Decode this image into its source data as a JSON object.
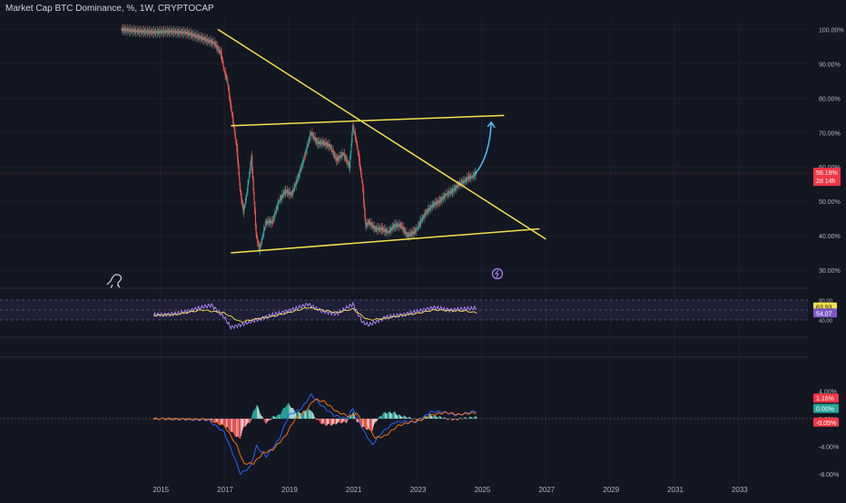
{
  "header": {
    "title": "Market Cap BTC Dominance, %, 1W, CRYPTOCAP"
  },
  "colors": {
    "background": "#131722",
    "up": "#26a69a",
    "down": "#ef5350",
    "trendline": "#f5e04b",
    "projection": "#4fc3f7",
    "rsi_line": "#b388ff",
    "rsi_ma": "#f5e04b",
    "macd": "#2962ff",
    "signal": "#ff6d00",
    "current_price_badge": "#f23645"
  },
  "main_price": {
    "current_value_label": "58.19%",
    "countdown_label": "2d 14h"
  },
  "rsi_pane": {
    "rsi_value": "63.93",
    "ma_value": "54.07"
  },
  "macd_pane": {
    "value_labels": [
      "1.16%",
      "0.00%",
      "-0.05%"
    ]
  },
  "chart_data": [
    {
      "type": "line",
      "title": "Market Cap BTC Dominance, %, 1W, CRYPTOCAP",
      "y_ticks": [
        "100.00%",
        "90.00%",
        "80.00%",
        "70.00%",
        "60.00%",
        "50.00%",
        "40.00%",
        "30.00%"
      ],
      "x_ticks": [
        "2015",
        "2017",
        "2019",
        "2021",
        "2023",
        "2025",
        "2027",
        "2029",
        "2031",
        "2033"
      ],
      "ylim": [
        30,
        100
      ],
      "x_year_range": [
        2014.2,
        2034.3
      ],
      "series": [
        {
          "points": [
            [
              2013.8,
              100
            ],
            [
              2014.3,
              99.5
            ],
            [
              2014.8,
              99.2
            ],
            [
              2015.3,
              99.4
            ],
            [
              2015.8,
              99.1
            ],
            [
              2016.3,
              97.5
            ],
            [
              2016.7,
              96
            ],
            [
              2016.9,
              93
            ],
            [
              2017.0,
              88
            ],
            [
              2017.1,
              85
            ],
            [
              2017.2,
              78
            ],
            [
              2017.3,
              72
            ],
            [
              2017.4,
              65
            ],
            [
              2017.5,
              53
            ],
            [
              2017.6,
              47
            ],
            [
              2017.7,
              52
            ],
            [
              2017.8,
              59
            ],
            [
              2017.85,
              63
            ],
            [
              2018.0,
              40
            ],
            [
              2018.1,
              36
            ],
            [
              2018.2,
              40
            ],
            [
              2018.3,
              44
            ],
            [
              2018.5,
              44
            ],
            [
              2018.7,
              50
            ],
            [
              2018.9,
              53
            ],
            [
              2019.1,
              52
            ],
            [
              2019.3,
              57
            ],
            [
              2019.5,
              63
            ],
            [
              2019.7,
              70
            ],
            [
              2019.9,
              67
            ],
            [
              2020.1,
              67
            ],
            [
              2020.3,
              66
            ],
            [
              2020.5,
              62
            ],
            [
              2020.7,
              64
            ],
            [
              2020.9,
              60
            ],
            [
              2021.0,
              72
            ],
            [
              2021.1,
              68
            ],
            [
              2021.2,
              62
            ],
            [
              2021.3,
              55
            ],
            [
              2021.4,
              43
            ],
            [
              2021.5,
              44
            ],
            [
              2021.7,
              42
            ],
            [
              2021.9,
              42
            ],
            [
              2022.1,
              41
            ],
            [
              2022.3,
              43
            ],
            [
              2022.5,
              43
            ],
            [
              2022.7,
              40
            ],
            [
              2022.9,
              41
            ],
            [
              2023.0,
              42
            ],
            [
              2023.1,
              44
            ],
            [
              2023.3,
              47
            ],
            [
              2023.5,
              49
            ],
            [
              2023.7,
              50
            ],
            [
              2023.9,
              52
            ],
            [
              2024.1,
              53
            ],
            [
              2024.3,
              55
            ],
            [
              2024.5,
              56
            ],
            [
              2024.6,
              57
            ],
            [
              2024.7,
              57
            ],
            [
              2024.8,
              58
            ],
            [
              2024.85,
              58.19
            ]
          ]
        }
      ],
      "annotations": [
        "descending trendline from 2016.8 at 100% to 2027.0 at 39%",
        "horizontal-ish channel top 2017.2 at 72% to 2025.7 at 75%",
        "channel bottom 2017.2 at 35% to 2026.8 at 42%",
        "projection arrow from 58% to 73% around 2025"
      ]
    },
    {
      "type": "line",
      "title": "RSI",
      "y_ticks": [
        "80.00",
        "40.00"
      ],
      "ylim": [
        20,
        90
      ],
      "series": [
        {
          "name": "RSI",
          "points": [
            [
              2014.8,
              50
            ],
            [
              2015.5,
              52
            ],
            [
              2016.3,
              65
            ],
            [
              2016.6,
              70
            ],
            [
              2017.0,
              45
            ],
            [
              2017.2,
              25
            ],
            [
              2017.5,
              30
            ],
            [
              2018.0,
              40
            ],
            [
              2018.5,
              50
            ],
            [
              2019.2,
              62
            ],
            [
              2019.6,
              72
            ],
            [
              2020.0,
              58
            ],
            [
              2020.5,
              52
            ],
            [
              2021.0,
              72
            ],
            [
              2021.3,
              35
            ],
            [
              2021.5,
              30
            ],
            [
              2022.0,
              45
            ],
            [
              2022.5,
              50
            ],
            [
              2023.0,
              57
            ],
            [
              2023.5,
              65
            ],
            [
              2024.0,
              60
            ],
            [
              2024.5,
              62
            ],
            [
              2024.85,
              63.93
            ]
          ]
        },
        {
          "name": "RSI-based MA",
          "points": [
            [
              2014.8,
              49
            ],
            [
              2015.5,
              51
            ],
            [
              2016.3,
              60
            ],
            [
              2017.0,
              54
            ],
            [
              2017.5,
              36
            ],
            [
              2018.0,
              42
            ],
            [
              2018.5,
              47
            ],
            [
              2019.2,
              58
            ],
            [
              2019.6,
              65
            ],
            [
              2020.0,
              60
            ],
            [
              2020.5,
              55
            ],
            [
              2021.0,
              62
            ],
            [
              2021.3,
              47
            ],
            [
              2021.5,
              40
            ],
            [
              2022.0,
              43
            ],
            [
              2022.5,
              49
            ],
            [
              2023.0,
              53
            ],
            [
              2023.5,
              60
            ],
            [
              2024.0,
              59
            ],
            [
              2024.5,
              58
            ],
            [
              2024.85,
              54.07
            ]
          ]
        }
      ]
    },
    {
      "type": "bar",
      "title": "MACD",
      "y_ticks": [
        "4.00%",
        "0.00%",
        "-4.00%",
        "-8.00%"
      ],
      "ylim": [
        -9,
        5
      ],
      "series": [
        {
          "name": "MACD",
          "points": [
            [
              2014.8,
              0
            ],
            [
              2016.5,
              -0.2
            ],
            [
              2017.0,
              -2
            ],
            [
              2017.3,
              -5.5
            ],
            [
              2017.5,
              -8
            ],
            [
              2017.8,
              -7
            ],
            [
              2018.0,
              -4
            ],
            [
              2018.3,
              -5.5
            ],
            [
              2018.7,
              -3
            ],
            [
              2019.0,
              0.5
            ],
            [
              2019.4,
              1.5
            ],
            [
              2019.7,
              3.5
            ],
            [
              2020.0,
              2
            ],
            [
              2020.4,
              0.5
            ],
            [
              2020.8,
              0
            ],
            [
              2021.0,
              1.5
            ],
            [
              2021.3,
              -1.5
            ],
            [
              2021.6,
              -3.8
            ],
            [
              2021.9,
              -2
            ],
            [
              2022.3,
              -0.5
            ],
            [
              2022.7,
              -0.4
            ],
            [
              2023.0,
              -0.5
            ],
            [
              2023.4,
              1
            ],
            [
              2023.8,
              1
            ],
            [
              2024.2,
              0.5
            ],
            [
              2024.85,
              1.16
            ]
          ]
        },
        {
          "name": "Signal",
          "points": [
            [
              2014.8,
              0
            ],
            [
              2016.5,
              -0.1
            ],
            [
              2017.0,
              -1
            ],
            [
              2017.4,
              -4
            ],
            [
              2017.6,
              -6.5
            ],
            [
              2017.9,
              -6.5
            ],
            [
              2018.2,
              -5
            ],
            [
              2018.5,
              -4.5
            ],
            [
              2018.9,
              -2.5
            ],
            [
              2019.2,
              0
            ],
            [
              2019.5,
              1
            ],
            [
              2019.8,
              2.8
            ],
            [
              2020.1,
              2.5
            ],
            [
              2020.5,
              1
            ],
            [
              2020.9,
              0.3
            ],
            [
              2021.1,
              0.8
            ],
            [
              2021.4,
              -0.8
            ],
            [
              2021.7,
              -2.8
            ],
            [
              2022.0,
              -2.5
            ],
            [
              2022.4,
              -1
            ],
            [
              2022.8,
              -0.5
            ],
            [
              2023.1,
              -0.2
            ],
            [
              2023.5,
              0.6
            ],
            [
              2023.9,
              0.9
            ],
            [
              2024.3,
              0.6
            ],
            [
              2024.85,
              0.9
            ]
          ]
        }
      ]
    }
  ]
}
